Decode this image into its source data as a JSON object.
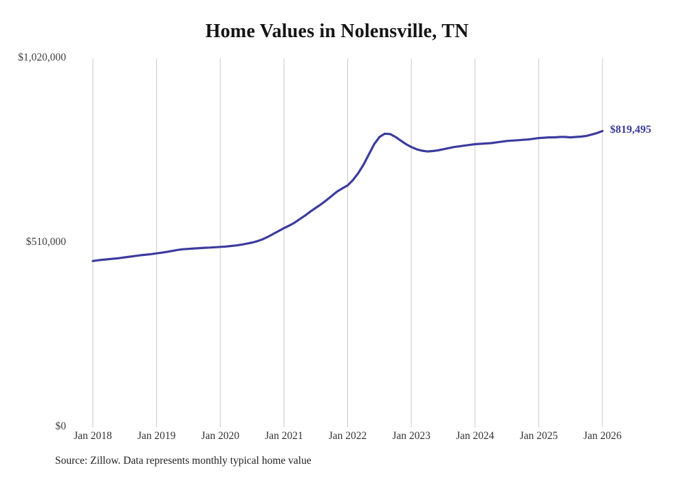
{
  "chart_data": {
    "type": "line",
    "title": "Home Values in Nolensville, TN",
    "x_tick_labels": [
      "Jan 2018",
      "Jan 2019",
      "Jan 2020",
      "Jan 2021",
      "Jan 2022",
      "Jan 2023",
      "Jan 2024",
      "Jan 2025",
      "Jan 2026"
    ],
    "y_tick_labels": [
      "$1,020,000",
      "$510,000",
      "$0"
    ],
    "y_ticks": [
      1020000,
      510000,
      0
    ],
    "ylim": [
      0,
      1020000
    ],
    "x_unit": "month",
    "x_start": "Jan 2018",
    "x_end": "Jan 2026",
    "grid": "vertical-only",
    "grid_color": "#c8c8c8",
    "legend": "none",
    "end_label": "$819,495",
    "source_note": "Source: Zillow. Data represents monthly typical home value",
    "series": [
      {
        "name": "Monthly typical home value",
        "color": "#3b3b9e",
        "values": [
          460000,
          462000,
          463500,
          465000,
          466500,
          468000,
          470000,
          472000,
          474000,
          476000,
          477500,
          479000,
          481000,
          483000,
          485500,
          488000,
          490500,
          492500,
          493500,
          494500,
          495500,
          496500,
          497000,
          498000,
          499000,
          500000,
          501500,
          503000,
          505000,
          508000,
          511000,
          515000,
          520000,
          527000,
          535000,
          543000,
          551000,
          558000,
          566000,
          576000,
          586000,
          597000,
          607000,
          617000,
          628000,
          640000,
          652000,
          661000,
          669000,
          684000,
          703000,
          727000,
          755000,
          783000,
          803000,
          812000,
          811000,
          803000,
          793000,
          783000,
          775000,
          769000,
          765000,
          763000,
          764000,
          766000,
          769000,
          772000,
          775000,
          777000,
          779000,
          781000,
          783000,
          784000,
          785000,
          786000,
          788000,
          790000,
          792000,
          793000,
          794000,
          795000,
          796000,
          798000,
          800000,
          801000,
          802000,
          802000,
          803000,
          803000,
          802000,
          803000,
          804000,
          806000,
          810000,
          814000,
          819495
        ]
      }
    ]
  }
}
